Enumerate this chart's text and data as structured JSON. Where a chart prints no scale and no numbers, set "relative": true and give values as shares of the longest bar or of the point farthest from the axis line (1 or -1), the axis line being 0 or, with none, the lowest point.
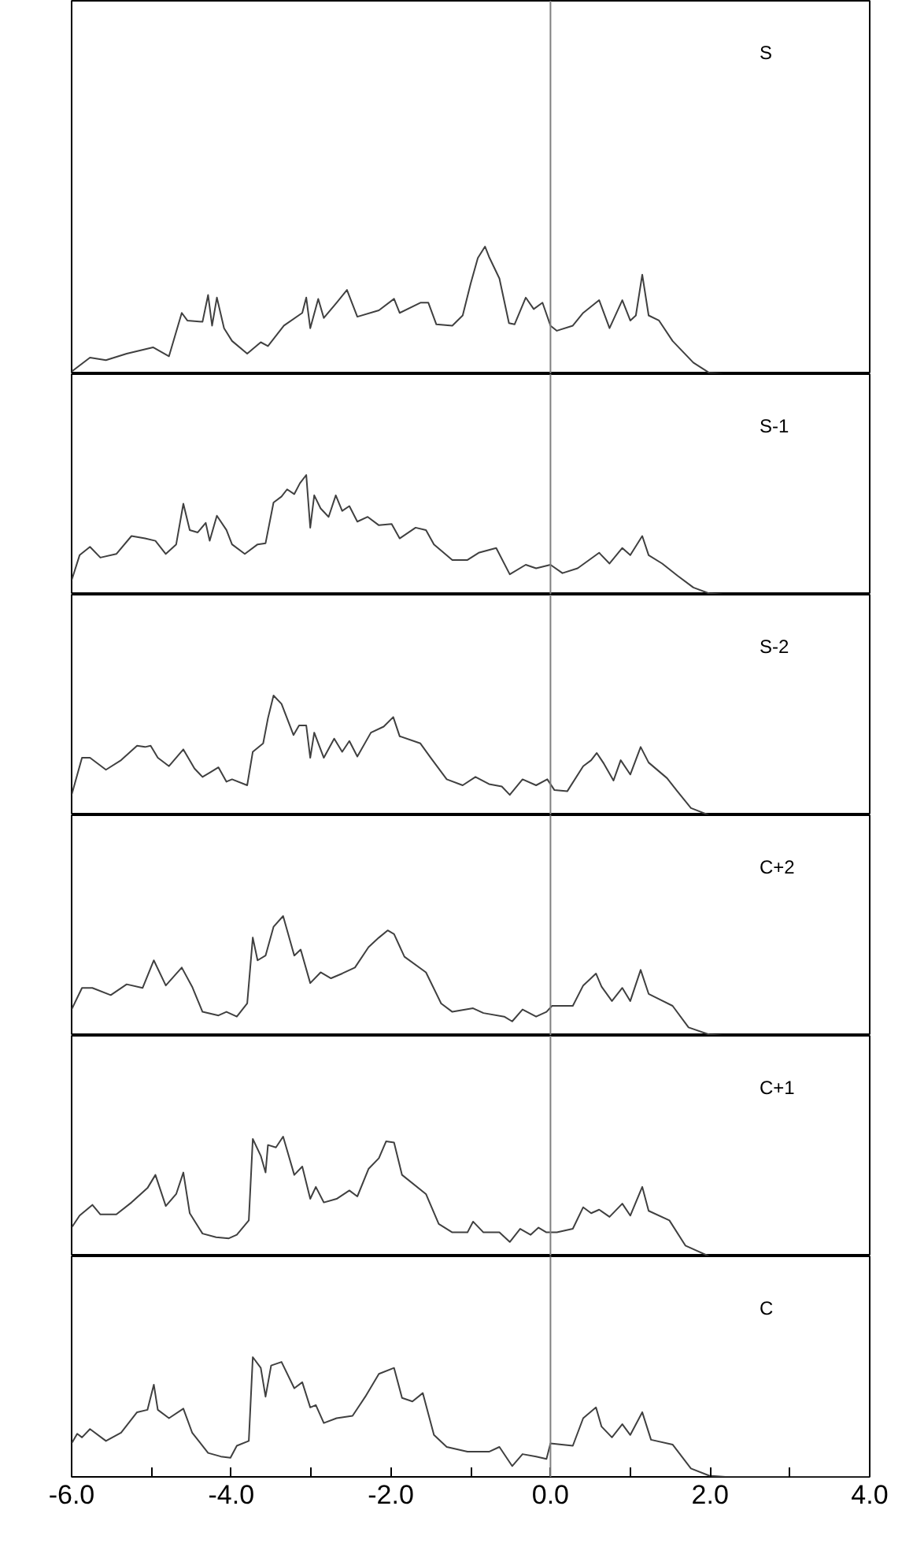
{
  "chart_data": [
    {
      "type": "line",
      "relative": true,
      "xlim": [
        -6,
        4
      ],
      "tick_labels": false,
      "ref_lines": [
        {
          "axis": "x",
          "value": 0,
          "color": "#808080"
        }
      ],
      "series": [
        {
          "name": "S",
          "color": "#404040",
          "x": [
            -6.0,
            -5.77,
            -5.57,
            -5.31,
            -4.98,
            -4.78,
            -4.62,
            -4.55,
            -4.36,
            -4.29,
            -4.24,
            -4.18,
            -4.09,
            -3.99,
            -3.8,
            -3.63,
            -3.54,
            -3.34,
            -3.11,
            -3.06,
            -3.01,
            -2.91,
            -2.84,
            -2.68,
            -2.55,
            -2.42,
            -2.15,
            -1.96,
            -1.89,
            -1.63,
            -1.53,
            -1.43,
            -1.23,
            -1.1,
            -1.0,
            -0.91,
            -0.82,
            -0.77,
            -0.64,
            -0.52,
            -0.45,
            -0.31,
            -0.21,
            -0.1,
            0.0,
            0.08,
            0.28,
            0.41,
            0.61,
            0.74,
            0.9,
            1.0,
            1.07,
            1.15,
            1.23,
            1.36,
            1.53,
            1.79,
            1.99,
            2.19,
            3.0,
            4.0
          ],
          "values": [
            0.02,
            0.13,
            0.11,
            0.16,
            0.21,
            0.14,
            0.48,
            0.42,
            0.41,
            0.62,
            0.38,
            0.6,
            0.36,
            0.26,
            0.16,
            0.25,
            0.22,
            0.38,
            0.48,
            0.6,
            0.36,
            0.59,
            0.44,
            0.56,
            0.66,
            0.45,
            0.5,
            0.59,
            0.48,
            0.56,
            0.56,
            0.39,
            0.38,
            0.46,
            0.71,
            0.91,
            1.0,
            0.92,
            0.75,
            0.4,
            0.39,
            0.6,
            0.51,
            0.56,
            0.38,
            0.34,
            0.38,
            0.48,
            0.58,
            0.36,
            0.58,
            0.42,
            0.46,
            0.78,
            0.46,
            0.42,
            0.26,
            0.09,
            0.01,
            0,
            0,
            0
          ]
        }
      ]
    },
    {
      "type": "line",
      "relative": true,
      "xlim": [
        -6,
        4
      ],
      "tick_labels": false,
      "ref_lines": [
        {
          "axis": "x",
          "value": 0,
          "color": "#808080"
        }
      ],
      "series": [
        {
          "name": "S-1",
          "color": "#404040",
          "x": [
            -6.0,
            -5.9,
            -5.77,
            -5.64,
            -5.44,
            -5.25,
            -5.08,
            -4.95,
            -4.82,
            -4.69,
            -4.6,
            -4.52,
            -4.42,
            -4.32,
            -4.27,
            -4.18,
            -4.06,
            -3.99,
            -3.83,
            -3.67,
            -3.57,
            -3.47,
            -3.37,
            -3.3,
            -3.21,
            -3.14,
            -3.06,
            -3.01,
            -2.96,
            -2.88,
            -2.78,
            -2.69,
            -2.61,
            -2.52,
            -2.42,
            -2.29,
            -2.15,
            -1.99,
            -1.89,
            -1.69,
            -1.56,
            -1.46,
            -1.23,
            -1.04,
            -0.9,
            -0.68,
            -0.51,
            -0.31,
            -0.18,
            0.0,
            0.15,
            0.34,
            0.61,
            0.74,
            0.9,
            1.0,
            1.15,
            1.23,
            1.4,
            1.59,
            1.79,
            1.99,
            2.19,
            3.0,
            4.0
          ],
          "values": [
            0.12,
            0.33,
            0.4,
            0.31,
            0.34,
            0.49,
            0.47,
            0.45,
            0.34,
            0.42,
            0.76,
            0.54,
            0.52,
            0.6,
            0.45,
            0.66,
            0.54,
            0.42,
            0.34,
            0.42,
            0.43,
            0.77,
            0.82,
            0.88,
            0.84,
            0.93,
            1.0,
            0.56,
            0.83,
            0.72,
            0.65,
            0.83,
            0.7,
            0.74,
            0.61,
            0.65,
            0.58,
            0.59,
            0.47,
            0.56,
            0.54,
            0.42,
            0.29,
            0.29,
            0.35,
            0.39,
            0.17,
            0.25,
            0.22,
            0.25,
            0.18,
            0.22,
            0.35,
            0.26,
            0.39,
            0.33,
            0.49,
            0.33,
            0.26,
            0.16,
            0.06,
            0.01,
            0,
            0,
            0
          ]
        }
      ]
    },
    {
      "type": "line",
      "relative": true,
      "xlim": [
        -6,
        4
      ],
      "tick_labels": false,
      "ref_lines": [
        {
          "axis": "x",
          "value": 0,
          "color": "#808080"
        }
      ],
      "series": [
        {
          "name": "S-2",
          "color": "#404040",
          "x": [
            -6.0,
            -5.87,
            -5.77,
            -5.57,
            -5.38,
            -5.18,
            -5.08,
            -5.01,
            -4.92,
            -4.78,
            -4.6,
            -4.46,
            -4.36,
            -4.26,
            -4.16,
            -4.06,
            -3.99,
            -3.8,
            -3.73,
            -3.6,
            -3.54,
            -3.47,
            -3.37,
            -3.22,
            -3.15,
            -3.06,
            -3.01,
            -2.96,
            -2.84,
            -2.71,
            -2.61,
            -2.52,
            -2.42,
            -2.25,
            -2.09,
            -1.97,
            -1.89,
            -1.63,
            -1.5,
            -1.3,
            -1.1,
            -0.94,
            -0.77,
            -0.61,
            -0.51,
            -0.35,
            -0.18,
            -0.04,
            0.05,
            0.21,
            0.41,
            0.51,
            0.58,
            0.67,
            0.79,
            0.88,
            1.0,
            1.13,
            1.23,
            1.46,
            1.59,
            1.76,
            1.99,
            2.19,
            3.0,
            4.0
          ],
          "values": [
            0.17,
            0.48,
            0.48,
            0.38,
            0.46,
            0.58,
            0.57,
            0.58,
            0.48,
            0.41,
            0.55,
            0.39,
            0.32,
            0.36,
            0.4,
            0.28,
            0.3,
            0.25,
            0.53,
            0.6,
            0.81,
            1.0,
            0.93,
            0.67,
            0.75,
            0.75,
            0.48,
            0.69,
            0.48,
            0.64,
            0.53,
            0.62,
            0.49,
            0.69,
            0.74,
            0.82,
            0.66,
            0.6,
            0.48,
            0.3,
            0.25,
            0.32,
            0.26,
            0.24,
            0.17,
            0.3,
            0.25,
            0.3,
            0.21,
            0.2,
            0.41,
            0.46,
            0.52,
            0.43,
            0.29,
            0.46,
            0.34,
            0.57,
            0.44,
            0.31,
            0.2,
            0.06,
            0,
            0,
            0,
            0
          ]
        }
      ]
    },
    {
      "type": "line",
      "relative": true,
      "xlim": [
        -6,
        4
      ],
      "tick_labels": false,
      "ref_lines": [
        {
          "axis": "x",
          "value": 0,
          "color": "#808080"
        }
      ],
      "series": [
        {
          "name": "C+2",
          "color": "#404040",
          "x": [
            -6.0,
            -5.87,
            -5.74,
            -5.51,
            -5.31,
            -5.11,
            -4.97,
            -4.82,
            -4.62,
            -4.49,
            -4.36,
            -4.16,
            -4.06,
            -3.93,
            -3.8,
            -3.73,
            -3.67,
            -3.57,
            -3.47,
            -3.35,
            -3.21,
            -3.13,
            -3.01,
            -2.88,
            -2.75,
            -2.61,
            -2.45,
            -2.28,
            -2.15,
            -2.04,
            -1.96,
            -1.83,
            -1.56,
            -1.37,
            -1.23,
            -0.97,
            -0.84,
            -0.58,
            -0.48,
            -0.35,
            -0.18,
            -0.05,
            0.02,
            0.28,
            0.41,
            0.57,
            0.64,
            0.77,
            0.9,
            1.0,
            1.13,
            1.23,
            1.53,
            1.73,
            1.99,
            2.19,
            3.0,
            4.0
          ],
          "values": [
            0.22,
            0.4,
            0.4,
            0.34,
            0.43,
            0.4,
            0.63,
            0.42,
            0.57,
            0.41,
            0.2,
            0.17,
            0.2,
            0.16,
            0.27,
            0.82,
            0.63,
            0.67,
            0.91,
            1.0,
            0.67,
            0.72,
            0.44,
            0.53,
            0.48,
            0.52,
            0.57,
            0.74,
            0.82,
            0.88,
            0.85,
            0.66,
            0.53,
            0.27,
            0.2,
            0.23,
            0.19,
            0.16,
            0.12,
            0.22,
            0.16,
            0.2,
            0.25,
            0.25,
            0.42,
            0.52,
            0.41,
            0.29,
            0.4,
            0.29,
            0.55,
            0.35,
            0.25,
            0.07,
            0.01,
            0,
            0,
            0
          ]
        }
      ]
    },
    {
      "type": "line",
      "relative": true,
      "xlim": [
        -6,
        4
      ],
      "tick_labels": false,
      "ref_lines": [
        {
          "axis": "x",
          "value": 0,
          "color": "#808080"
        }
      ],
      "series": [
        {
          "name": "C+1",
          "color": "#404040",
          "x": [
            -6.0,
            -5.9,
            -5.74,
            -5.64,
            -5.44,
            -5.25,
            -5.05,
            -4.95,
            -4.82,
            -4.69,
            -4.6,
            -4.52,
            -4.36,
            -4.19,
            -4.03,
            -3.93,
            -3.78,
            -3.73,
            -3.63,
            -3.57,
            -3.54,
            -3.44,
            -3.35,
            -3.21,
            -3.11,
            -3.01,
            -2.94,
            -2.84,
            -2.68,
            -2.52,
            -2.42,
            -2.28,
            -2.15,
            -2.06,
            -1.96,
            -1.86,
            -1.56,
            -1.4,
            -1.23,
            -1.04,
            -0.97,
            -0.84,
            -0.64,
            -0.51,
            -0.38,
            -0.25,
            -0.15,
            -0.05,
            0.08,
            0.28,
            0.41,
            0.51,
            0.61,
            0.74,
            0.9,
            1.0,
            1.15,
            1.23,
            1.49,
            1.69,
            1.99,
            2.19,
            3.0,
            4.0
          ],
          "values": [
            0.24,
            0.34,
            0.43,
            0.35,
            0.35,
            0.45,
            0.57,
            0.68,
            0.42,
            0.52,
            0.7,
            0.36,
            0.19,
            0.16,
            0.15,
            0.18,
            0.3,
            0.98,
            0.84,
            0.7,
            0.93,
            0.91,
            1.0,
            0.68,
            0.75,
            0.48,
            0.58,
            0.45,
            0.48,
            0.55,
            0.5,
            0.73,
            0.82,
            0.96,
            0.95,
            0.68,
            0.52,
            0.27,
            0.2,
            0.2,
            0.29,
            0.2,
            0.2,
            0.12,
            0.23,
            0.18,
            0.24,
            0.2,
            0.2,
            0.23,
            0.41,
            0.36,
            0.39,
            0.33,
            0.44,
            0.34,
            0.58,
            0.38,
            0.3,
            0.09,
            0,
            0,
            0,
            0
          ]
        }
      ]
    },
    {
      "type": "line",
      "relative": true,
      "xlim": [
        -6,
        4
      ],
      "xticks": [
        {
          "value": -6,
          "label": "-6.0"
        },
        {
          "value": -5,
          "label": null
        },
        {
          "value": -4,
          "label": "-4.0"
        },
        {
          "value": -3,
          "label": null
        },
        {
          "value": -2,
          "label": "-2.0"
        },
        {
          "value": -1,
          "label": null
        },
        {
          "value": 0,
          "label": "0.0"
        },
        {
          "value": 1,
          "label": null
        },
        {
          "value": 2,
          "label": "2.0"
        },
        {
          "value": 3,
          "label": null
        },
        {
          "value": 4,
          "label": "4.0"
        }
      ],
      "tick_labels": "x",
      "ref_lines": [
        {
          "axis": "x",
          "value": 0,
          "color": "#808080"
        }
      ],
      "series": [
        {
          "name": "C",
          "color": "#404040",
          "x": [
            -6.0,
            -5.93,
            -5.87,
            -5.77,
            -5.57,
            -5.38,
            -5.18,
            -5.05,
            -4.97,
            -4.92,
            -4.78,
            -4.6,
            -4.49,
            -4.29,
            -4.13,
            -4.01,
            -3.93,
            -3.78,
            -3.73,
            -3.63,
            -3.57,
            -3.5,
            -3.37,
            -3.21,
            -3.11,
            -3.01,
            -2.94,
            -2.84,
            -2.68,
            -2.48,
            -2.32,
            -2.15,
            -1.96,
            -1.86,
            -1.73,
            -1.6,
            -1.46,
            -1.3,
            -1.04,
            -0.77,
            -0.64,
            -0.48,
            -0.35,
            -0.18,
            -0.05,
            0.0,
            0.28,
            0.41,
            0.57,
            0.64,
            0.77,
            0.9,
            1.0,
            1.15,
            1.26,
            1.53,
            1.76,
            1.99,
            2.19,
            3.0,
            4.0
          ],
          "values": [
            0.28,
            0.36,
            0.33,
            0.4,
            0.3,
            0.37,
            0.54,
            0.56,
            0.77,
            0.56,
            0.49,
            0.57,
            0.37,
            0.2,
            0.17,
            0.16,
            0.26,
            0.3,
            1.0,
            0.91,
            0.67,
            0.93,
            0.96,
            0.74,
            0.79,
            0.58,
            0.6,
            0.45,
            0.49,
            0.51,
            0.67,
            0.86,
            0.91,
            0.66,
            0.63,
            0.7,
            0.35,
            0.25,
            0.21,
            0.21,
            0.25,
            0.09,
            0.19,
            0.17,
            0.15,
            0.28,
            0.26,
            0.49,
            0.58,
            0.42,
            0.33,
            0.44,
            0.35,
            0.54,
            0.31,
            0.27,
            0.07,
            0.01,
            0,
            0,
            0
          ]
        }
      ]
    }
  ]
}
